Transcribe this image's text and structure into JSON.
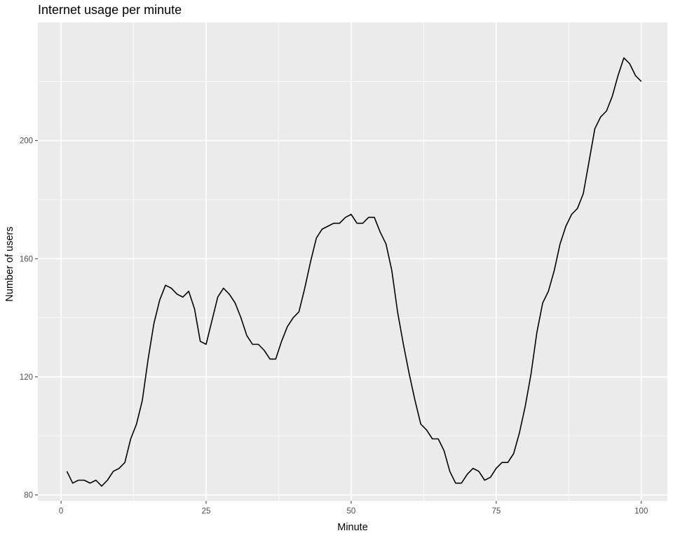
{
  "chart_data": {
    "type": "line",
    "title": "Internet usage per minute",
    "xlabel": "Minute",
    "ylabel": "Number of users",
    "xlim": [
      -4,
      104.5
    ],
    "ylim": [
      78,
      240
    ],
    "x_ticks": [
      0,
      25,
      50,
      75,
      100
    ],
    "x_tick_labels": [
      "0",
      "25",
      "50",
      "75",
      "100"
    ],
    "x_minor_ticks": [
      12.5,
      37.5,
      62.5,
      87.5
    ],
    "y_ticks": [
      80,
      120,
      160,
      200
    ],
    "y_tick_labels": [
      "80",
      "120",
      "160",
      "200"
    ],
    "y_minor_ticks": [
      100,
      140,
      180,
      220
    ],
    "grid": true,
    "panel_background": "#ebebeb",
    "grid_color": "#ffffff",
    "line_color": "#000000",
    "series": [
      {
        "x": [
          1,
          2,
          3,
          4,
          5,
          6,
          7,
          8,
          9,
          10,
          11,
          12,
          13,
          14,
          15,
          16,
          17,
          18,
          19,
          20,
          21,
          22,
          23,
          24,
          25,
          26,
          27,
          28,
          29,
          30,
          31,
          32,
          33,
          34,
          35,
          36,
          37,
          38,
          39,
          40,
          41,
          42,
          43,
          44,
          45,
          46,
          47,
          48,
          49,
          50,
          51,
          52,
          53,
          54,
          55,
          56,
          57,
          58,
          59,
          60,
          61,
          62,
          63,
          64,
          65,
          66,
          67,
          68,
          69,
          70,
          71,
          72,
          73,
          74,
          75,
          76,
          77,
          78,
          79,
          80,
          81,
          82,
          83,
          84,
          85,
          86,
          87,
          88,
          89,
          90,
          91,
          92,
          93,
          94,
          95,
          96,
          97,
          98,
          99,
          100
        ],
        "values": [
          88,
          84,
          85,
          85,
          84,
          85,
          83,
          85,
          88,
          89,
          91,
          99,
          104,
          112,
          126,
          138,
          146,
          151,
          150,
          148,
          147,
          149,
          143,
          132,
          131,
          139,
          147,
          150,
          148,
          145,
          140,
          134,
          131,
          131,
          129,
          126,
          126,
          132,
          137,
          140,
          142,
          150,
          159,
          167,
          170,
          171,
          172,
          172,
          174,
          175,
          172,
          172,
          174,
          174,
          169,
          165,
          156,
          142,
          131,
          121,
          112,
          104,
          102,
          99,
          99,
          95,
          88,
          84,
          84,
          87,
          89,
          88,
          85,
          86,
          89,
          91,
          91,
          94,
          101,
          110,
          121,
          135,
          145,
          149,
          156,
          165,
          171,
          175,
          177,
          182,
          193,
          204,
          208,
          210,
          215,
          222,
          228,
          226,
          222,
          220
        ]
      }
    ]
  }
}
